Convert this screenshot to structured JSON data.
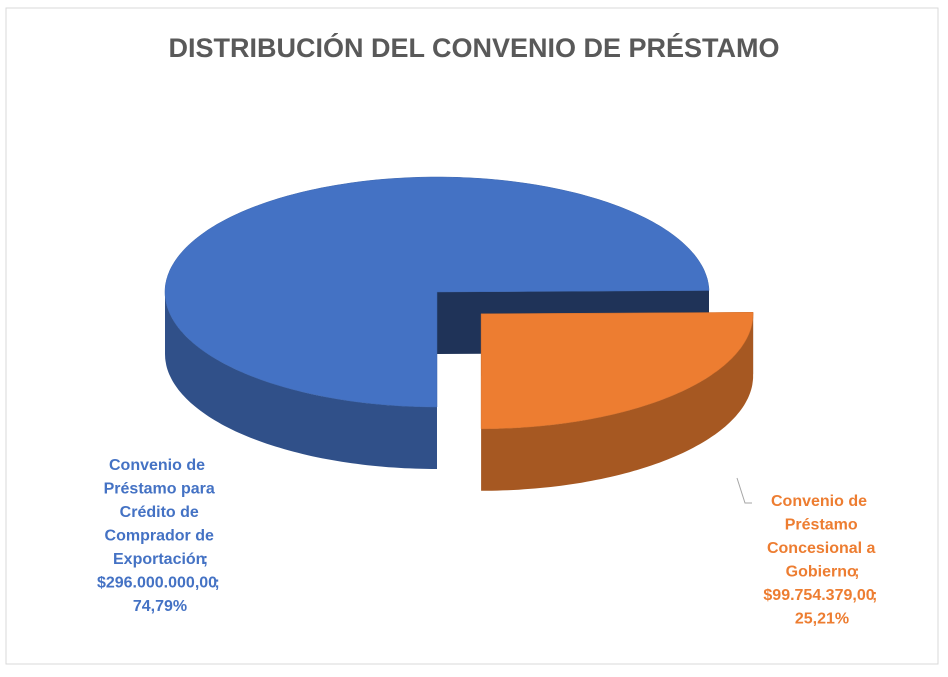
{
  "chart_data": {
    "type": "pie",
    "title": "DISTRIBUCIÓN DEL CONVENIO DE PRÉSTAMO",
    "categories": [
      "Convenio de Préstamo para Crédito de Comprador de Exportación",
      "Convenio de Préstamo Concesional a Gobierno"
    ],
    "values": [
      296000000,
      99754379
    ],
    "value_labels": [
      "$296.000.000,00",
      "$99.754.379,00"
    ],
    "percentages": [
      74.79,
      25.21
    ],
    "percentage_labels": [
      "74,79%",
      "25,21%"
    ],
    "label_separator": ";",
    "colors": [
      "#4472c4",
      "#ed7d31"
    ],
    "exploded": [
      false,
      true
    ],
    "three_d": true
  }
}
